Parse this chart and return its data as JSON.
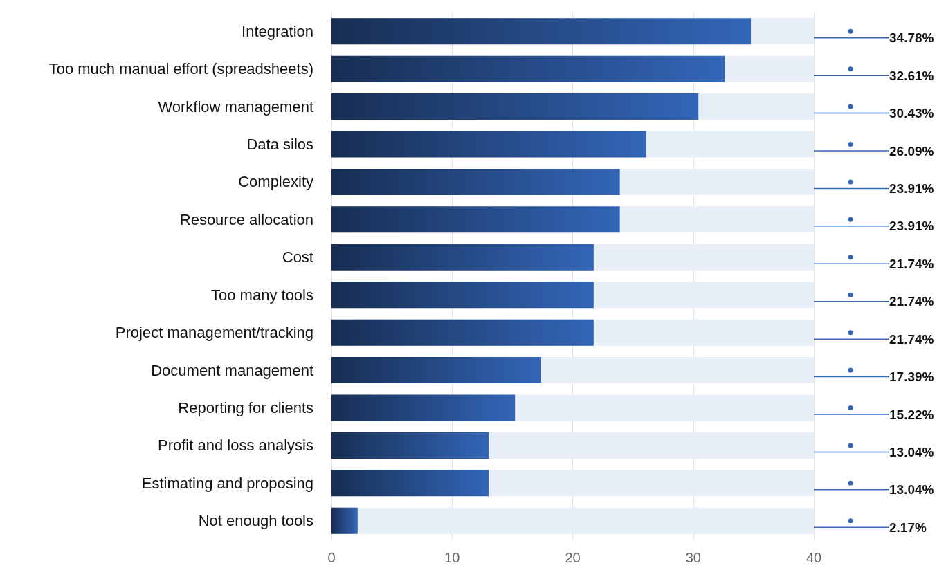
{
  "chart_data": {
    "type": "bar",
    "orientation": "horizontal",
    "categories": [
      "Integration",
      "Too much manual effort (spreadsheets)",
      "Workflow management",
      "Data silos",
      "Complexity",
      "Resource allocation",
      "Cost",
      "Too many tools",
      "Project management/tracking",
      "Document management",
      "Reporting for clients",
      "Profit and loss analysis",
      "Estimating and proposing",
      "Not enough tools"
    ],
    "values": [
      34.78,
      32.61,
      30.43,
      26.09,
      23.91,
      23.91,
      21.74,
      21.74,
      21.74,
      17.39,
      15.22,
      13.04,
      13.04,
      2.17
    ],
    "value_labels": [
      "34.78%",
      "32.61%",
      "30.43%",
      "26.09%",
      "23.91%",
      "23.91%",
      "21.74%",
      "21.74%",
      "21.74%",
      "17.39%",
      "15.22%",
      "13.04%",
      "13.04%",
      "2.17%"
    ],
    "color": "#3366b8",
    "xlim": [
      0,
      40
    ],
    "xticks": [
      0,
      10,
      20,
      30,
      40
    ],
    "grid": "x"
  }
}
